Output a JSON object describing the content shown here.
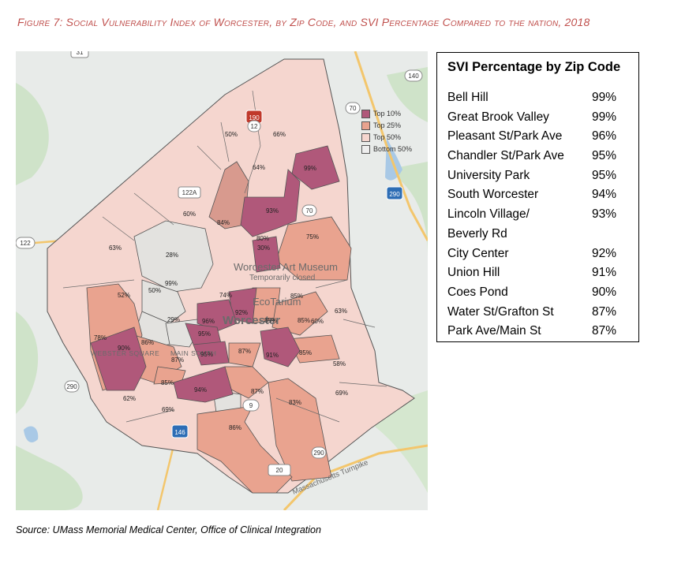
{
  "figure": {
    "title": "Figure 7: Social Vulnerability Index of Worcester, by Zip Code, and SVI Percentage Compared to the nation, 2018",
    "source": "Source: UMass Memorial Medical Center, Office of Clinical Integration"
  },
  "legend": {
    "items": [
      {
        "label": "Top 10%",
        "color": "#b0587a"
      },
      {
        "label": "Top 25%",
        "color": "#e9a38f"
      },
      {
        "label": "Top 50%",
        "color": "#f5d6cf"
      },
      {
        "label": "Bottom 50%",
        "color": "#eeeeee"
      }
    ]
  },
  "map": {
    "place_labels": {
      "city": "Worcester",
      "museum": "Worcester Art Museum",
      "museum_status": "Temporarily closed",
      "ecotarium": "EcoTarium",
      "webster_square": "WEBSTER SQUARE",
      "main_south": "MAIN SOUTH",
      "turnpike": "Massachusetts Turnpike"
    },
    "route_shields": [
      "31",
      "140",
      "70",
      "190",
      "12",
      "122A",
      "290",
      "70",
      "122",
      "290",
      "9",
      "146",
      "290",
      "20",
      "122A",
      "12"
    ],
    "zip_labels": [
      {
        "text": "50%",
        "tier": "top50"
      },
      {
        "text": "66%",
        "tier": "top50"
      },
      {
        "text": "64%",
        "tier": "top50"
      },
      {
        "text": "99%",
        "tier": "top10"
      },
      {
        "text": "60%",
        "tier": "top50"
      },
      {
        "text": "84%",
        "tier": "top25"
      },
      {
        "text": "93%",
        "tier": "top10"
      },
      {
        "text": "63%",
        "tier": "top50"
      },
      {
        "text": "28%",
        "tier": "bottom50"
      },
      {
        "text": "80%",
        "tier": "top25"
      },
      {
        "text": "75%",
        "tier": "top25"
      },
      {
        "text": "99%",
        "tier": "top10"
      },
      {
        "text": "30%",
        "tier": "bottom50"
      },
      {
        "text": "52%",
        "tier": "top50"
      },
      {
        "text": "50%",
        "tier": "bottom50"
      },
      {
        "text": "74%",
        "tier": "top50"
      },
      {
        "text": "92%",
        "tier": "top10"
      },
      {
        "text": "85%",
        "tier": "top25"
      },
      {
        "text": "85%",
        "tier": "top25"
      },
      {
        "text": "63%",
        "tier": "top50"
      },
      {
        "text": "60%",
        "tier": "top50"
      },
      {
        "text": "29%",
        "tier": "bottom50"
      },
      {
        "text": "96%",
        "tier": "top10"
      },
      {
        "text": "95%",
        "tier": "top10"
      },
      {
        "text": "78%",
        "tier": "top25"
      },
      {
        "text": "90%",
        "tier": "top10"
      },
      {
        "text": "86%",
        "tier": "top25"
      },
      {
        "text": "87%",
        "tier": "top25"
      },
      {
        "text": "95%",
        "tier": "top10"
      },
      {
        "text": "87%",
        "tier": "top25"
      },
      {
        "text": "91%",
        "tier": "top10"
      },
      {
        "text": "85%",
        "tier": "top25"
      },
      {
        "text": "58%",
        "tier": "top50"
      },
      {
        "text": "85%",
        "tier": "top25"
      },
      {
        "text": "85%",
        "tier": "top25"
      },
      {
        "text": "94%",
        "tier": "top10"
      },
      {
        "text": "87%",
        "tier": "top25"
      },
      {
        "text": "62%",
        "tier": "top50"
      },
      {
        "text": "69%",
        "tier": "top50"
      },
      {
        "text": "83%",
        "tier": "top25"
      },
      {
        "text": "69%",
        "tier": "top50"
      },
      {
        "text": "86%",
        "tier": "top25"
      }
    ]
  },
  "svi_table": {
    "title": "SVI Percentage by Zip Code",
    "rows": [
      {
        "name": "Bell Hill",
        "value": "99%"
      },
      {
        "name": "Great Brook Valley",
        "value": "99%"
      },
      {
        "name": "Pleasant St/Park Ave",
        "value": "96%"
      },
      {
        "name": "Chandler St/Park Ave",
        "value": "95%"
      },
      {
        "name": "University Park",
        "value": "95%"
      },
      {
        "name": "South Worcester",
        "value": "94%"
      },
      {
        "name": "Lincoln Village/",
        "value": "93%"
      },
      {
        "name": "Beverly Rd",
        "value": ""
      },
      {
        "name": "City Center",
        "value": "92%"
      },
      {
        "name": "Union Hill",
        "value": "91%"
      },
      {
        "name": "Coes Pond",
        "value": "90%"
      },
      {
        "name": "Water St/Grafton St",
        "value": "87%"
      },
      {
        "name": "Park Ave/Main St",
        "value": "87%"
      }
    ]
  }
}
